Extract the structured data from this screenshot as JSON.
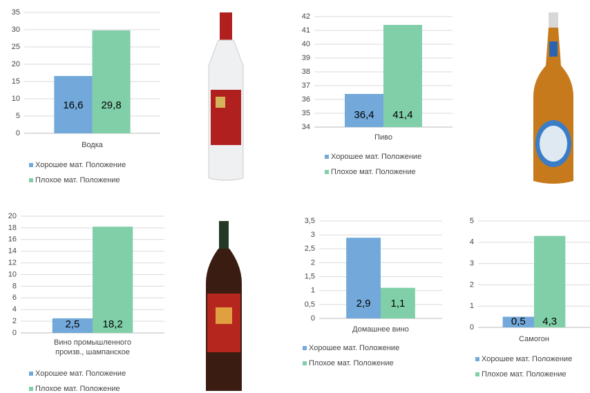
{
  "chart_data": [
    {
      "type": "bar",
      "categories": [
        "Водка"
      ],
      "ylim": [
        0,
        35
      ],
      "yticks": [
        0,
        5,
        10,
        15,
        20,
        25,
        30,
        35
      ],
      "grid": true,
      "series": [
        {
          "name": "Хорошее мат. Положение",
          "color": "#72a9da",
          "values": [
            16.6
          ],
          "value_labels": [
            "16,6"
          ]
        },
        {
          "name": "Плохое мат. Положение",
          "color": "#80cfa9",
          "values": [
            29.8
          ],
          "value_labels": [
            "29,8"
          ]
        }
      ]
    },
    {
      "type": "bar",
      "categories": [
        "Пиво"
      ],
      "ylim": [
        34,
        42
      ],
      "yticks": [
        34,
        35,
        36,
        37,
        38,
        39,
        40,
        41,
        42
      ],
      "grid": true,
      "series": [
        {
          "name": "Хорошее мат. Положение",
          "color": "#72a9da",
          "values": [
            36.4
          ],
          "value_labels": [
            "36,4"
          ]
        },
        {
          "name": "Плохое мат. Положение",
          "color": "#80cfa9",
          "values": [
            41.4
          ],
          "value_labels": [
            "41,4"
          ]
        }
      ]
    },
    {
      "type": "bar",
      "categories": [
        "Вино промышленного произв., шампанское"
      ],
      "ylim": [
        0,
        20
      ],
      "yticks": [
        0,
        2,
        4,
        6,
        8,
        10,
        12,
        14,
        16,
        18,
        20
      ],
      "grid": true,
      "series": [
        {
          "name": "Хорошее мат. Положение",
          "color": "#72a9da",
          "values": [
            2.5
          ],
          "value_labels": [
            "2,5"
          ]
        },
        {
          "name": "Плохое мат. Положение",
          "color": "#80cfa9",
          "values": [
            18.2
          ],
          "value_labels": [
            "18,2"
          ]
        }
      ]
    },
    {
      "type": "bar",
      "categories": [
        "Домашнее вино"
      ],
      "ylim": [
        0,
        3.5
      ],
      "yticks": [
        0,
        {
          "value": 0.5,
          "label": "0,5"
        },
        1,
        {
          "value": 1.5,
          "label": "1,5"
        },
        2,
        {
          "value": 2.5,
          "label": "2,5"
        },
        3,
        {
          "value": 3.5,
          "label": "3,5"
        }
      ],
      "grid": true,
      "series": [
        {
          "name": "Хорошее мат. Положение",
          "color": "#72a9da",
          "values": [
            2.9
          ],
          "value_labels": [
            "2,9"
          ]
        },
        {
          "name": "Плохое мат. Положение",
          "color": "#80cfa9",
          "values": [
            1.1
          ],
          "value_labels": [
            "1,1"
          ]
        }
      ]
    },
    {
      "type": "bar",
      "categories": [
        "Самогон"
      ],
      "ylim": [
        0,
        5
      ],
      "yticks": [
        0,
        1,
        2,
        3,
        4,
        5
      ],
      "grid": true,
      "series": [
        {
          "name": "Хорошее мат. Положение",
          "color": "#72a9da",
          "values": [
            0.5
          ],
          "value_labels": [
            "0,5"
          ]
        },
        {
          "name": "Плохое мат. Положение",
          "color": "#80cfa9",
          "values": [
            4.3
          ],
          "value_labels": [
            "4,3"
          ]
        }
      ]
    }
  ]
}
